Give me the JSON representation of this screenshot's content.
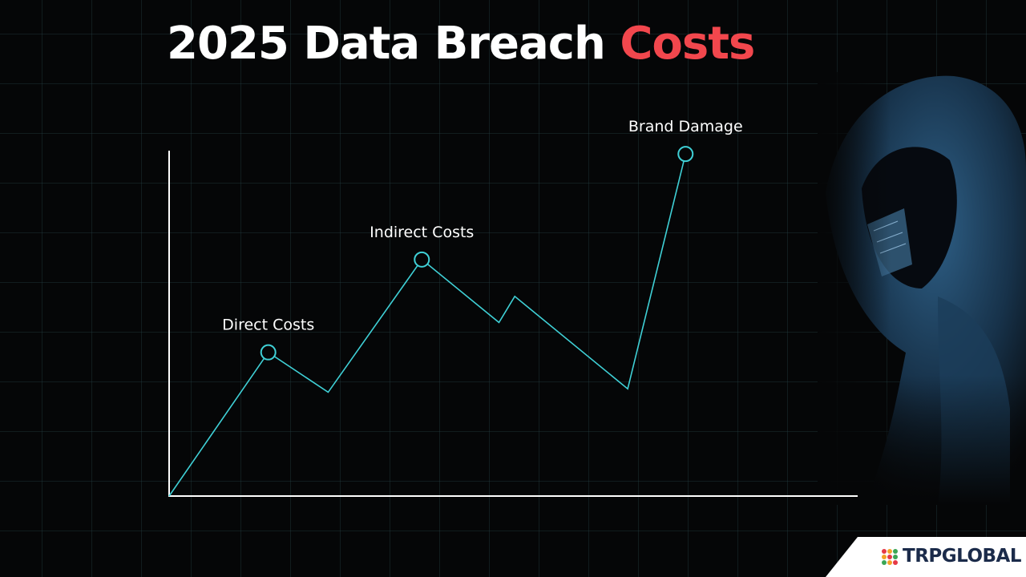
{
  "header": {
    "title_main": "2025 Data Breach",
    "title_accent": "Costs"
  },
  "chart_data": {
    "type": "line",
    "title": "2025 Data Breach Costs",
    "xlabel": "",
    "ylabel": "",
    "xlim": [
      0,
      100
    ],
    "ylim": [
      0,
      100
    ],
    "grid": false,
    "series": [
      {
        "x": [
          0,
          14.4,
          23.1,
          36.7,
          47.9,
          50.2,
          66.6,
          75.0
        ],
        "y": [
          0,
          41.8,
          30.2,
          68.8,
          50.5,
          58.1,
          31.2,
          99.5
        ]
      }
    ],
    "annotations": [
      {
        "index": 1,
        "label": "Direct Costs"
      },
      {
        "index": 3,
        "label": "Indirect Costs"
      },
      {
        "index": 7,
        "label": "Brand Damage"
      }
    ],
    "colors": {
      "line": "#3fd0d6",
      "axis": "#ffffff",
      "label": "#ffffff"
    }
  },
  "brand": {
    "name": "TRPGLOBAL",
    "text_color": "#1b2b4a",
    "dot_colors": [
      "#e63946",
      "#f4a227",
      "#3aa655",
      "#f4a227",
      "#e63946",
      "#3aa655",
      "#3aa655",
      "#f4a227",
      "#e63946"
    ]
  },
  "decor": {
    "figure": "hooded-hacker-figure"
  }
}
